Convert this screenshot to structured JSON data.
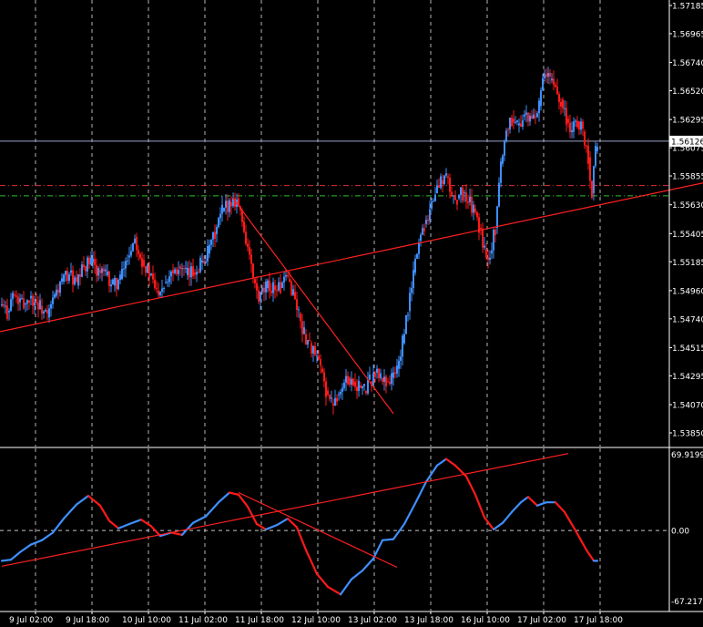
{
  "chart_data": [
    {
      "type": "candlestick",
      "title": "",
      "xlabel": "",
      "ylabel": "",
      "ylim": [
        1.5385,
        1.5719
      ],
      "grid": true,
      "x_ticks": [
        "9 Jul 02:00",
        "9 Jul 18:00",
        "10 Jul 10:00",
        "11 Jul 02:00",
        "11 Jul 18:00",
        "12 Jul 10:00",
        "13 Jul 02:00",
        "13 Jul 18:00",
        "16 Jul 10:00",
        "17 Jul 02:00",
        "17 Jul 18:00"
      ],
      "y_ticks": [
        "1.57185",
        "1.56965",
        "1.56740",
        "1.56520",
        "1.56295",
        "1.56075",
        "1.55855",
        "1.55630",
        "1.55405",
        "1.55185",
        "1.54960",
        "1.54740",
        "1.54515",
        "1.54295",
        "1.54070",
        "1.53850"
      ],
      "y_tick_values": [
        1.57185,
        1.56965,
        1.5674,
        1.5652,
        1.56295,
        1.56075,
        1.55855,
        1.5563,
        1.55405,
        1.55185,
        1.5496,
        1.5474,
        1.54515,
        1.54295,
        1.5407,
        1.5385
      ],
      "current_price": "1.56126",
      "current_price_value": 1.56126,
      "level_lines": [
        {
          "value": 1.5578,
          "color": "#e03030",
          "style": "dash-dot"
        },
        {
          "value": 1.557,
          "color": "#30c030",
          "style": "dash-dot"
        }
      ],
      "close_path": [
        {
          "x": 0,
          "y": 1.5485
        },
        {
          "x": 8,
          "y": 1.5479
        },
        {
          "x": 14,
          "y": 1.5493
        },
        {
          "x": 20,
          "y": 1.5487
        },
        {
          "x": 26,
          "y": 1.5485
        },
        {
          "x": 32,
          "y": 1.549
        },
        {
          "x": 38,
          "y": 1.5488
        },
        {
          "x": 44,
          "y": 1.5484
        },
        {
          "x": 52,
          "y": 1.5475
        },
        {
          "x": 60,
          "y": 1.5492
        },
        {
          "x": 68,
          "y": 1.5503
        },
        {
          "x": 76,
          "y": 1.551
        },
        {
          "x": 84,
          "y": 1.55
        },
        {
          "x": 92,
          "y": 1.5515
        },
        {
          "x": 100,
          "y": 1.5518
        },
        {
          "x": 108,
          "y": 1.5512
        },
        {
          "x": 116,
          "y": 1.5508
        },
        {
          "x": 124,
          "y": 1.55
        },
        {
          "x": 132,
          "y": 1.5505
        },
        {
          "x": 140,
          "y": 1.5522
        },
        {
          "x": 148,
          "y": 1.5538
        },
        {
          "x": 156,
          "y": 1.552
        },
        {
          "x": 164,
          "y": 1.5508
        },
        {
          "x": 172,
          "y": 1.5496
        },
        {
          "x": 180,
          "y": 1.5502
        },
        {
          "x": 188,
          "y": 1.5512
        },
        {
          "x": 196,
          "y": 1.5515
        },
        {
          "x": 204,
          "y": 1.5508
        },
        {
          "x": 212,
          "y": 1.551
        },
        {
          "x": 220,
          "y": 1.5518
        },
        {
          "x": 228,
          "y": 1.5525
        },
        {
          "x": 236,
          "y": 1.554
        },
        {
          "x": 244,
          "y": 1.5558
        },
        {
          "x": 252,
          "y": 1.5565
        },
        {
          "x": 260,
          "y": 1.5568
        },
        {
          "x": 266,
          "y": 1.555
        },
        {
          "x": 272,
          "y": 1.553
        },
        {
          "x": 278,
          "y": 1.5505
        },
        {
          "x": 284,
          "y": 1.5488
        },
        {
          "x": 292,
          "y": 1.5498
        },
        {
          "x": 300,
          "y": 1.55
        },
        {
          "x": 308,
          "y": 1.5498
        },
        {
          "x": 316,
          "y": 1.5505
        },
        {
          "x": 322,
          "y": 1.5495
        },
        {
          "x": 328,
          "y": 1.5478
        },
        {
          "x": 334,
          "y": 1.5462
        },
        {
          "x": 340,
          "y": 1.5455
        },
        {
          "x": 346,
          "y": 1.5445
        },
        {
          "x": 352,
          "y": 1.5435
        },
        {
          "x": 358,
          "y": 1.5418
        },
        {
          "x": 364,
          "y": 1.5408
        },
        {
          "x": 370,
          "y": 1.5415
        },
        {
          "x": 376,
          "y": 1.542
        },
        {
          "x": 382,
          "y": 1.5428
        },
        {
          "x": 388,
          "y": 1.5425
        },
        {
          "x": 394,
          "y": 1.5422
        },
        {
          "x": 400,
          "y": 1.5418
        },
        {
          "x": 406,
          "y": 1.5425
        },
        {
          "x": 412,
          "y": 1.5432
        },
        {
          "x": 418,
          "y": 1.5428
        },
        {
          "x": 424,
          "y": 1.5425
        },
        {
          "x": 430,
          "y": 1.5428
        },
        {
          "x": 436,
          "y": 1.5435
        },
        {
          "x": 442,
          "y": 1.5455
        },
        {
          "x": 448,
          "y": 1.548
        },
        {
          "x": 454,
          "y": 1.551
        },
        {
          "x": 460,
          "y": 1.5535
        },
        {
          "x": 466,
          "y": 1.5548
        },
        {
          "x": 472,
          "y": 1.556
        },
        {
          "x": 478,
          "y": 1.5572
        },
        {
          "x": 484,
          "y": 1.5582
        },
        {
          "x": 490,
          "y": 1.5585
        },
        {
          "x": 496,
          "y": 1.557
        },
        {
          "x": 502,
          "y": 1.5568
        },
        {
          "x": 508,
          "y": 1.5572
        },
        {
          "x": 514,
          "y": 1.5565
        },
        {
          "x": 520,
          "y": 1.556
        },
        {
          "x": 526,
          "y": 1.5545
        },
        {
          "x": 532,
          "y": 1.5528
        },
        {
          "x": 538,
          "y": 1.5525
        },
        {
          "x": 544,
          "y": 1.5545
        },
        {
          "x": 550,
          "y": 1.5595
        },
        {
          "x": 556,
          "y": 1.5622
        },
        {
          "x": 562,
          "y": 1.563
        },
        {
          "x": 568,
          "y": 1.5625
        },
        {
          "x": 574,
          "y": 1.5632
        },
        {
          "x": 580,
          "y": 1.5628
        },
        {
          "x": 586,
          "y": 1.5632
        },
        {
          "x": 592,
          "y": 1.564
        },
        {
          "x": 598,
          "y": 1.5665
        },
        {
          "x": 604,
          "y": 1.566
        },
        {
          "x": 610,
          "y": 1.5655
        },
        {
          "x": 616,
          "y": 1.5645
        },
        {
          "x": 622,
          "y": 1.563
        },
        {
          "x": 628,
          "y": 1.562
        },
        {
          "x": 634,
          "y": 1.5628
        },
        {
          "x": 640,
          "y": 1.562
        },
        {
          "x": 646,
          "y": 1.56
        },
        {
          "x": 650,
          "y": 1.5572
        },
        {
          "x": 654,
          "y": 1.5605
        },
        {
          "x": 656,
          "y": 1.5612
        }
      ],
      "trendlines": [
        {
          "x1": 0,
          "y1": 1.5464,
          "x2": 772,
          "y2": 1.558,
          "color": "#ff2020"
        },
        {
          "x1": 256,
          "y1": 1.5568,
          "x2": 432,
          "y2": 1.54,
          "color": "#ff2020"
        }
      ]
    },
    {
      "type": "line",
      "title": "",
      "xlabel": "",
      "ylabel": "",
      "ylim": [
        -67.2174,
        69.9199
      ],
      "y_ticks": [
        "69.9199",
        "0.00",
        "-67.2174"
      ],
      "y_tick_values": [
        69.9199,
        0,
        -67.2174
      ],
      "series": [
        {
          "rising_color": "#3f8fff",
          "falling_color": "#ff1a1a",
          "points": [
            {
              "x": 2,
              "y": -28
            },
            {
              "x": 12,
              "y": -27
            },
            {
              "x": 22,
              "y": -20
            },
            {
              "x": 34,
              "y": -13
            },
            {
              "x": 46,
              "y": -9
            },
            {
              "x": 58,
              "y": -2
            },
            {
              "x": 70,
              "y": 11
            },
            {
              "x": 84,
              "y": 24
            },
            {
              "x": 97,
              "y": 32
            },
            {
              "x": 110,
              "y": 23
            },
            {
              "x": 120,
              "y": 9
            },
            {
              "x": 130,
              "y": 2
            },
            {
              "x": 142,
              "y": 6
            },
            {
              "x": 155,
              "y": 10
            },
            {
              "x": 166,
              "y": 4
            },
            {
              "x": 176,
              "y": -5
            },
            {
              "x": 188,
              "y": -2
            },
            {
              "x": 200,
              "y": -4
            },
            {
              "x": 212,
              "y": 7
            },
            {
              "x": 226,
              "y": 13
            },
            {
              "x": 240,
              "y": 26
            },
            {
              "x": 252,
              "y": 35
            },
            {
              "x": 262,
              "y": 33
            },
            {
              "x": 272,
              "y": 22
            },
            {
              "x": 282,
              "y": 6
            },
            {
              "x": 292,
              "y": 1
            },
            {
              "x": 304,
              "y": 5
            },
            {
              "x": 316,
              "y": 11
            },
            {
              "x": 326,
              "y": 3
            },
            {
              "x": 336,
              "y": -18
            },
            {
              "x": 348,
              "y": -40
            },
            {
              "x": 360,
              "y": -52
            },
            {
              "x": 374,
              "y": -59
            },
            {
              "x": 386,
              "y": -45
            },
            {
              "x": 398,
              "y": -37
            },
            {
              "x": 410,
              "y": -26
            },
            {
              "x": 420,
              "y": -9
            },
            {
              "x": 432,
              "y": -8
            },
            {
              "x": 444,
              "y": 6
            },
            {
              "x": 456,
              "y": 25
            },
            {
              "x": 468,
              "y": 45
            },
            {
              "x": 480,
              "y": 60
            },
            {
              "x": 490,
              "y": 66
            },
            {
              "x": 500,
              "y": 60
            },
            {
              "x": 512,
              "y": 50
            },
            {
              "x": 522,
              "y": 33
            },
            {
              "x": 532,
              "y": 12
            },
            {
              "x": 542,
              "y": 1
            },
            {
              "x": 552,
              "y": 7
            },
            {
              "x": 562,
              "y": 17
            },
            {
              "x": 572,
              "y": 26
            },
            {
              "x": 580,
              "y": 31
            },
            {
              "x": 590,
              "y": 23
            },
            {
              "x": 600,
              "y": 26
            },
            {
              "x": 610,
              "y": 26
            },
            {
              "x": 620,
              "y": 17
            },
            {
              "x": 632,
              "y": 0
            },
            {
              "x": 644,
              "y": -18
            },
            {
              "x": 652,
              "y": -28
            },
            {
              "x": 656,
              "y": -28
            }
          ]
        }
      ],
      "trendlines": [
        {
          "x1": 2,
          "y1": -33,
          "x2": 624,
          "y2": 71,
          "color": "#ff2020"
        },
        {
          "x1": 262,
          "y1": 35,
          "x2": 436,
          "y2": -34,
          "color": "#ff2020"
        }
      ]
    }
  ]
}
